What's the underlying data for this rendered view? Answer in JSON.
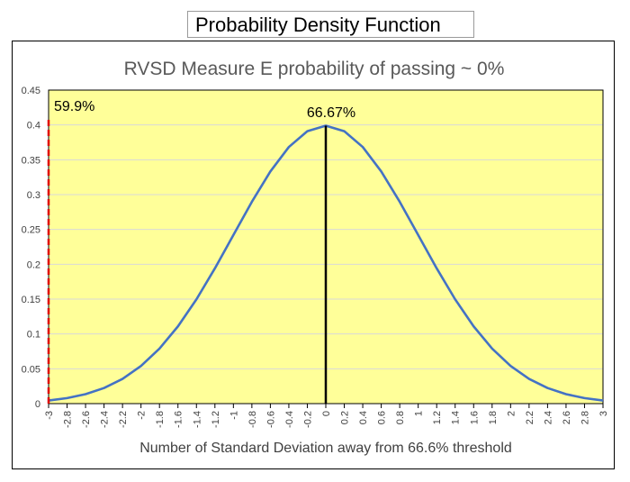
{
  "header": {
    "title": "Probability Density Function"
  },
  "chart_data": {
    "type": "line",
    "title": "RVSD Measure E probability of passing ~ 0%",
    "xlabel": "Number of Standard Deviation away from 66.6% threshold",
    "ylabel": "",
    "xlim": [
      -3,
      3
    ],
    "ylim": [
      0,
      0.45
    ],
    "x_ticks": [
      "-3",
      "-2.8",
      "-2.6",
      "-2.4",
      "-2.2",
      "-2",
      "-1.8",
      "-1.6",
      "-1.4",
      "-1.2",
      "-1",
      "-0.8",
      "-0.6",
      "-0.4",
      "-0.2",
      "0",
      "0.2",
      "0.4",
      "0.6",
      "0.8",
      "1",
      "1.2",
      "1.4",
      "1.6",
      "1.8",
      "2",
      "2.2",
      "2.4",
      "2.6",
      "2.8",
      "3"
    ],
    "y_ticks": [
      "0",
      "0.05",
      "0.1",
      "0.15",
      "0.2",
      "0.25",
      "0.3",
      "0.35",
      "0.4",
      "0.45"
    ],
    "grid": true,
    "series": [
      {
        "color": "#4472c4",
        "x": [
          -3,
          -2.8,
          -2.6,
          -2.4,
          -2.2,
          -2,
          -1.8,
          -1.6,
          -1.4,
          -1.2,
          -1,
          -0.8,
          -0.6,
          -0.4,
          -0.2,
          0,
          0.2,
          0.4,
          0.6,
          0.8,
          1,
          1.2,
          1.4,
          1.6,
          1.8,
          2,
          2.2,
          2.4,
          2.6,
          2.8,
          3
        ],
        "y": [
          0.0044,
          0.0079,
          0.0136,
          0.0224,
          0.0355,
          0.054,
          0.079,
          0.1109,
          0.1497,
          0.1942,
          0.242,
          0.2897,
          0.3332,
          0.3683,
          0.391,
          0.3989,
          0.391,
          0.3683,
          0.3332,
          0.2897,
          0.242,
          0.1942,
          0.1497,
          0.1109,
          0.079,
          0.054,
          0.0355,
          0.0224,
          0.0136,
          0.0079,
          0.0044
        ]
      }
    ],
    "markers": [
      {
        "label": "66.67%",
        "x": 0,
        "y_top": 0.3989,
        "color": "#000000",
        "style": "solid"
      },
      {
        "label": "59.9%",
        "x": -3,
        "y_top": 0.41,
        "color": "#e00000",
        "style": "dashed"
      }
    ],
    "colors": {
      "plot_background": "#ffff99",
      "curve": "#4472c4",
      "gridline": "#d9d9d9"
    }
  }
}
